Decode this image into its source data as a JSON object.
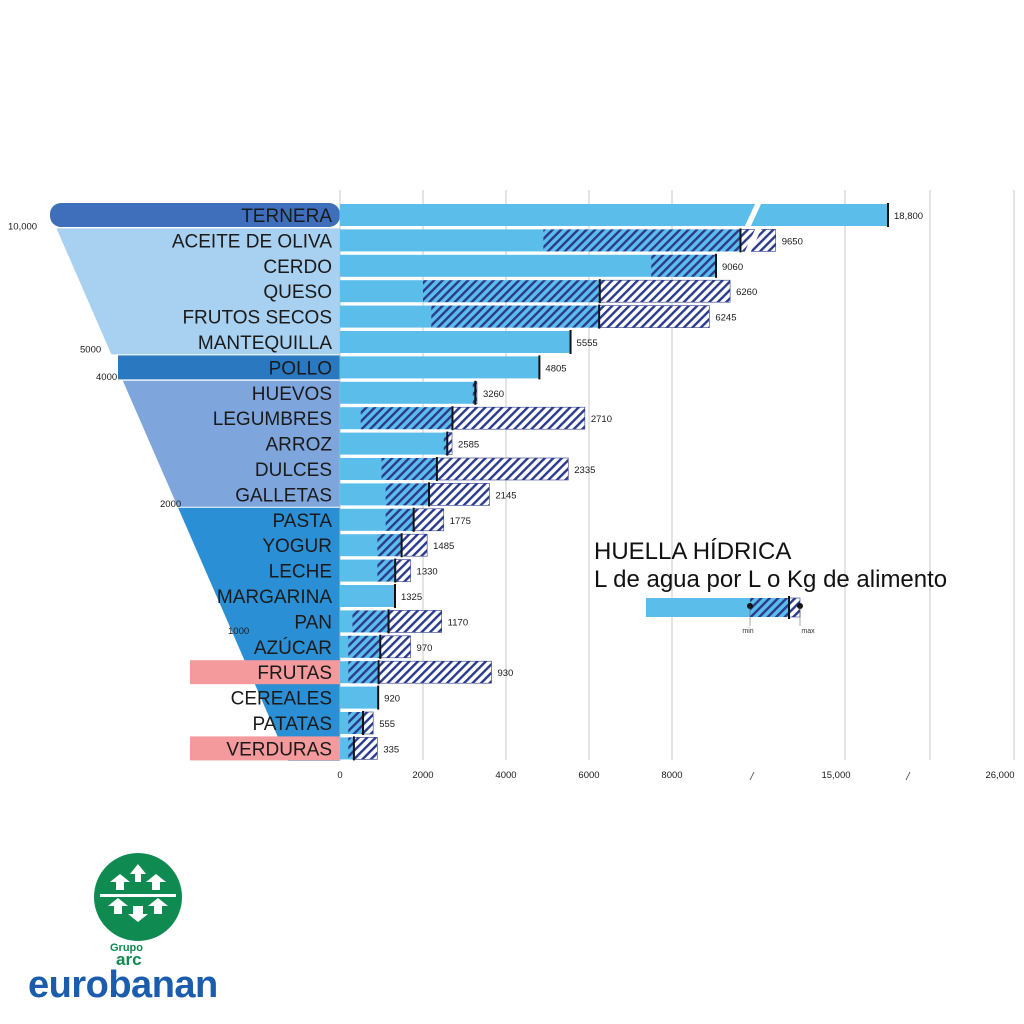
{
  "chart_data": {
    "type": "bar",
    "title": "HUELLA HÍDRICA",
    "subtitle": "L de agua por L o Kg de alimento",
    "legend": {
      "min_label": "min",
      "max_label": "max"
    },
    "x_ticks": [
      "0",
      "2000",
      "4000",
      "6000",
      "8000",
      "15,000",
      "26,000"
    ],
    "funnel_labels": [
      "10,000",
      "5000",
      "4000",
      "2000",
      "1000"
    ],
    "colors": {
      "bar": "#5bbdea",
      "hatch": "#2b3a8c",
      "funnel_top": "#3f6fba",
      "funnel_light": "#a8d0f0",
      "funnel_pollo": "#2a78bf",
      "funnel_mid": "#7ea6dd",
      "funnel_blue": "#2a8fd4",
      "highlight_pink": "#f4999c",
      "grid": "#bbbbbb"
    },
    "categories": [
      "TERNERA",
      "ACEITE DE OLIVA",
      "CERDO",
      "QUESO",
      "FRUTOS SECOS",
      "MANTEQUILLA",
      "POLLO",
      "HUEVOS",
      "LEGUMBRES",
      "ARROZ",
      "DULCES",
      "GALLETAS",
      "PASTA",
      "YOGUR",
      "LECHE",
      "MARGARINA",
      "PAN",
      "AZÚCAR",
      "FRUTAS",
      "CEREALES",
      "PATATAS",
      "VERDURAS"
    ],
    "values": [
      18800,
      9650,
      9060,
      6260,
      6245,
      5555,
      4805,
      3260,
      2710,
      2585,
      2335,
      2145,
      1775,
      1485,
      1330,
      1325,
      1170,
      970,
      930,
      920,
      555,
      335
    ],
    "value_labels": [
      "18,800",
      "9650",
      "9060",
      "6260",
      "6245",
      "5555",
      "4805",
      "3260",
      "2710",
      "2585",
      "2335",
      "2145",
      "1775",
      "1485",
      "1330",
      "1325",
      "1170",
      "970",
      "930",
      "920",
      "555",
      "335"
    ],
    "ranges": [
      null,
      [
        4900,
        11200
      ],
      [
        7500,
        9060
      ],
      [
        2000,
        9400
      ],
      [
        2200,
        8900
      ],
      null,
      null,
      [
        3200,
        3300
      ],
      [
        500,
        5900
      ],
      [
        2500,
        2700
      ],
      [
        1000,
        5500
      ],
      [
        1100,
        3600
      ],
      [
        1100,
        2500
      ],
      [
        900,
        2100
      ],
      [
        900,
        1700
      ],
      null,
      [
        300,
        2450
      ],
      [
        200,
        1700
      ],
      [
        200,
        3650
      ],
      null,
      [
        200,
        800
      ],
      [
        200,
        900
      ]
    ]
  },
  "logo": {
    "grupo": "Grupo",
    "arc": "arc",
    "brand": "eurobanan"
  }
}
